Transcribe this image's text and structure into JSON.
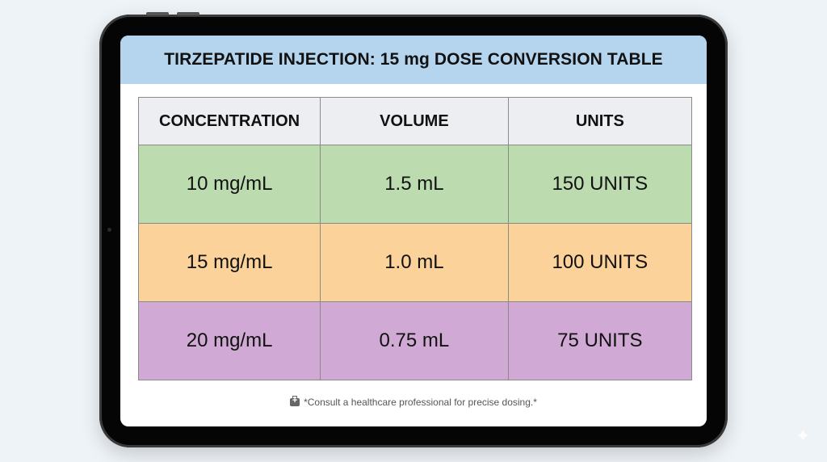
{
  "title": "TIRZEPATIDE INJECTION: 15 mg DOSE CONVERSION TABLE",
  "table": {
    "headers": [
      "CONCENTRATION",
      "VOLUME",
      "UNITS"
    ],
    "rows": [
      {
        "concentration": "10 mg/mL",
        "volume": "1.5 mL",
        "units": "150 UNITS",
        "color": "#bcdcb0"
      },
      {
        "concentration": "15 mg/mL",
        "volume": "1.0 mL",
        "units": "100 UNITS",
        "color": "#fbd29a"
      },
      {
        "concentration": "20 mg/mL",
        "volume": "0.75 mL",
        "units": "75 UNITS",
        "color": "#d0a9d4"
      }
    ]
  },
  "footer": {
    "icon": "first-aid-kit-icon",
    "text": "*Consult a healthcare professional for precise dosing.*"
  },
  "colors": {
    "title_bar": "#b5d5ee",
    "header_row": "#eceef1",
    "tablet_bezel": "#050505"
  }
}
